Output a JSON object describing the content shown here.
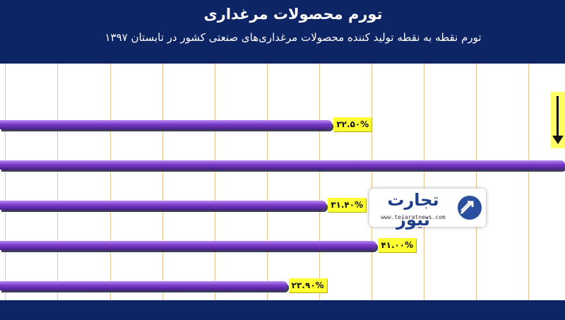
{
  "header": {
    "title": "تورم محصولات مرغداری",
    "subtitle": "تورم نقطه به نقطه تولید کننده محصولات مرغداری‌های صنعتی کشور در تابستان ۱۳۹۷"
  },
  "colors": {
    "header_bg": "#0d2465",
    "bar": "#6a2fc0",
    "label_bg": "#ffff33",
    "grid": "#e8c28f"
  },
  "logo": {
    "name": "تجارت نیوز",
    "domain": "www.tejaratnews.com",
    "icon": "arrow-circle-icon"
  },
  "chart_data": {
    "type": "bar",
    "orientation": "horizontal",
    "title": "تورم محصولات مرغداری",
    "subtitle": "تورم نقطه به نقطه تولید کننده محصولات مرغداری‌های صنعتی کشور در تابستان ۱۳۹۷",
    "xlim": [
      -31,
      77
    ],
    "grid": true,
    "series": [
      {
        "values": [
          32.5,
          80,
          31.4,
          41.0,
          23.9
        ],
        "labels": [
          "۳۲.۵۰%",
          "",
          "۳۱.۴۰%",
          "۴۱.۰۰%",
          "۲۳.۹۰%"
        ]
      }
    ]
  }
}
